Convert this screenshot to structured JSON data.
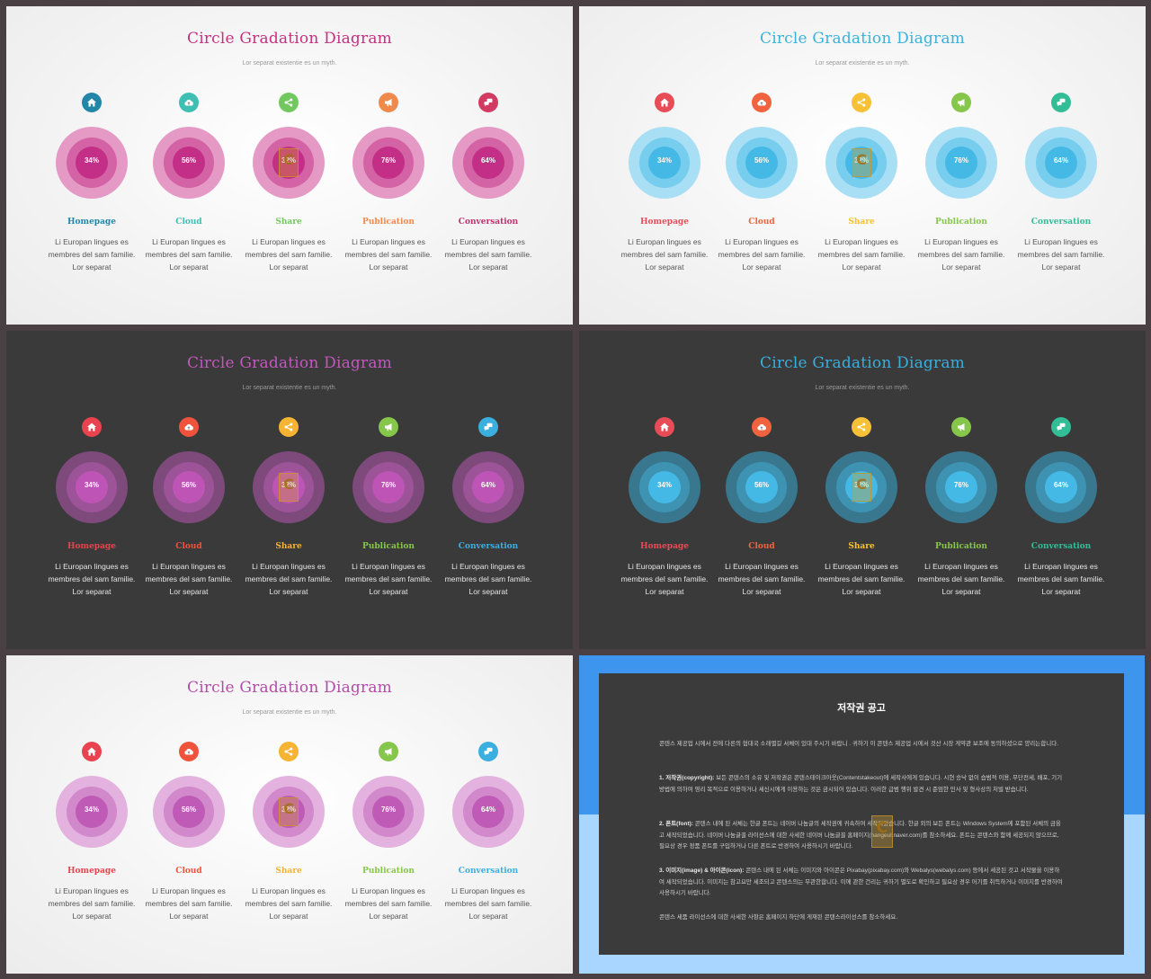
{
  "slide_title": "Circle Gradation Diagram",
  "slide_subtitle": "Lor separat existentie es un myth.",
  "items": [
    {
      "label": "Homepage",
      "percent": "34%",
      "icon": "home-icon"
    },
    {
      "label": "Cloud",
      "percent": "56%",
      "icon": "cloud-upload-icon"
    },
    {
      "label": "Share",
      "percent": "32%",
      "icon": "share-icon"
    },
    {
      "label": "Publication",
      "percent": "76%",
      "icon": "megaphone-icon"
    },
    {
      "label": "Conversation",
      "percent": "64%",
      "icon": "chat-icon"
    }
  ],
  "description": {
    "line1": "Li Europan lingues es",
    "line2": "membres del sam familie.",
    "line3": "Lor separat"
  },
  "themes": {
    "slide1": {
      "title_color": "#c5307f",
      "ring": [
        "#e59ac6",
        "#d463a5",
        "#c32e86"
      ],
      "icon_colors": [
        "#2186a8",
        "#3fbfb3",
        "#72c85e",
        "#f08a4c",
        "#d23a61"
      ],
      "label_colors": [
        "#2186a8",
        "#3fbfb3",
        "#72c85e",
        "#f08a4c",
        "#c23070"
      ]
    },
    "slide2": {
      "title_color": "#3ab2dc",
      "ring": [
        "#a9dff4",
        "#77cdee",
        "#44b9e6"
      ],
      "icon_colors": [
        "#e74c57",
        "#f0633e",
        "#f7c137",
        "#86c64a",
        "#33bd97"
      ],
      "label_colors": [
        "#e74c57",
        "#f0633e",
        "#f7c137",
        "#86c64a",
        "#33bd97"
      ]
    },
    "slide3": {
      "title_color": "#c457be",
      "ring": [
        "#7d4a7b",
        "#9c5398",
        "#be55b6"
      ],
      "icon_colors": [
        "#e8434e",
        "#f0533c",
        "#f5b431",
        "#86c64a",
        "#3bafe0"
      ],
      "label_colors": [
        "#e8434e",
        "#f0533c",
        "#f5b431",
        "#86c64a",
        "#3bafe0"
      ]
    },
    "slide4": {
      "title_color": "#3aaede",
      "ring": [
        "#39778f",
        "#3e93b3",
        "#44b9e6"
      ],
      "icon_colors": [
        "#e74c57",
        "#f0633e",
        "#f7c137",
        "#86c64a",
        "#33bd97"
      ],
      "label_colors": [
        "#e74c57",
        "#f0633e",
        "#f7c137",
        "#86c64a",
        "#33bd97"
      ]
    },
    "slide5": {
      "title_color": "#b24ca8",
      "ring": [
        "#e3b2df",
        "#d289cb",
        "#bf5bb6"
      ],
      "icon_colors": [
        "#e8434e",
        "#f0533c",
        "#f5b431",
        "#86c64a",
        "#3bafe0"
      ],
      "label_colors": [
        "#e8434e",
        "#f0533c",
        "#f5b431",
        "#86c64a",
        "#3bafe0"
      ]
    }
  },
  "notice": {
    "title": "저작권 공고",
    "intro": "콘텐스 제공업 시에서 전에 다른의 협대국 소래별길 서체이 있대 주시기 바랍니 . 귀하기 이 콘텐스 제공업 시에서 것산 시장 게약관 보조에 동의하셨으로 양리는합니다.",
    "p1_head": "1. 저작권(copyright):",
    "p1": "보든 콘텐스의 소유 및 저작권은 콘텐스테이크아웃(Contentstakeout)에 세작사에게 있습니다. 시현 승낙 없이 습범적 이용, 무단전세, 배포, 기기 방법에 의하여 영리 목적으로 이용하거나 세신시에게 이용하는 것은 금시되어 있습니다. 이러한 급범 행위 발견 시 준엄한 민사 및 형사상의 처벌 받습니다.",
    "p2_head": "2. 폰트(font):",
    "p2": "콘텐스 내에 된 서체는 한글 폰트는 네이버 나눔글의 세작권에 귀속하여 세작되었습니다. 한글 외의 보든 폰트는 Windows System에 포함된 서체의 금융고 세작되었습니다. 네이버 나눔글꼴 라이선스에 대한 사세한 네이버 나눔글꼴 홈페이지(hangeul.naver.com)를 참소하세요. 폰트는 콘텐스와 함께 세공되지 않으므로, 필요상 경우 정품 폰트를 구입하거나 다른 폰트로 반경하여 사용하시기 바랍니다.",
    "p3_head": "3. 이미지(image) & 아이콘(icon):",
    "p3": "콘텐스 내에 된 서체는 이미지와 아이콘은 Pixabay(pixabay.com)와 Webalys(webalys.com) 등에서 세공된 것고 서작물을 이용하여 세작되었습니다. 이미지는 참고요만 세조되고 콘텐스의는 무관한합니다. 이에 관한 건리는 귀하기 별도로 확인하고 필요상 경우 어기를 취득하거나 이미지를 반경하여 사용하시기 바랍니다.",
    "outro": "콘텐스 세품 라이선스에 대한 사세한 사항은 홈페이지 하단에 게재된 콘텐스라이선스를 참소하세요."
  }
}
